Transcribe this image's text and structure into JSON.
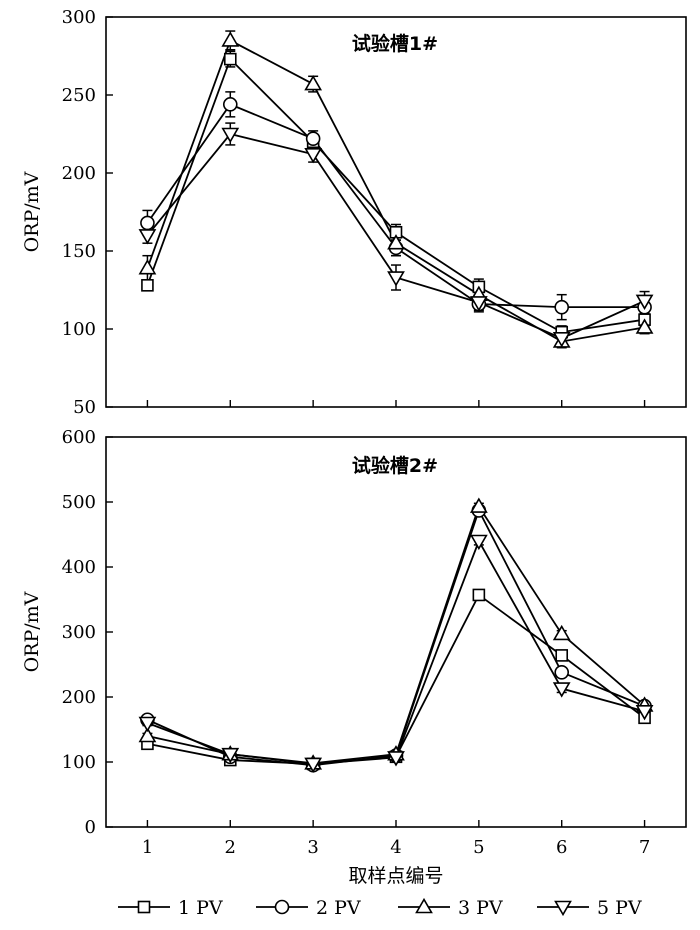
{
  "chart_data": [
    {
      "type": "line",
      "title": "试验槽1#",
      "xlabel": "",
      "ylabel": "ORP/mV",
      "x": [
        1,
        2,
        3,
        4,
        5,
        6,
        7
      ],
      "xticks": [
        "1",
        "2",
        "3",
        "4",
        "5",
        "6",
        "7"
      ],
      "xlim": [
        0.5,
        7.5
      ],
      "ylim": [
        50,
        300
      ],
      "yticks": [
        50,
        100,
        150,
        200,
        250,
        300
      ],
      "series": [
        {
          "name": "1 PV",
          "marker": "square",
          "values": [
            128,
            273,
            220,
            162,
            127,
            98,
            106
          ],
          "errors": [
            3,
            5,
            4,
            5,
            5,
            4,
            4
          ]
        },
        {
          "name": "2 PV",
          "marker": "circle",
          "values": [
            168,
            244,
            222,
            152,
            116,
            114,
            114
          ],
          "errors": [
            8,
            8,
            5,
            5,
            5,
            8,
            5
          ]
        },
        {
          "name": "3 PV",
          "marker": "triangle-up",
          "values": [
            139,
            285,
            257,
            155,
            122,
            92,
            101
          ],
          "errors": [
            8,
            6,
            5,
            8,
            6,
            4,
            4
          ]
        },
        {
          "name": "5 PV",
          "marker": "triangle-down",
          "values": [
            160,
            225,
            212,
            133,
            117,
            94,
            118
          ],
          "errors": [
            5,
            7,
            5,
            8,
            5,
            4,
            6
          ]
        }
      ]
    },
    {
      "type": "line",
      "title": "试验槽2#",
      "xlabel": "取样点编号",
      "ylabel": "ORP/mV",
      "x": [
        1,
        2,
        3,
        4,
        5,
        6,
        7
      ],
      "xticks": [
        "1",
        "2",
        "3",
        "4",
        "5",
        "6",
        "7"
      ],
      "xlim": [
        0.5,
        7.5
      ],
      "ylim": [
        0,
        600
      ],
      "yticks": [
        0,
        100,
        200,
        300,
        400,
        500,
        600
      ],
      "series": [
        {
          "name": "1 PV",
          "marker": "square",
          "values": [
            128,
            103,
            97,
            108,
            357,
            264,
            168
          ],
          "errors": [
            4,
            4,
            6,
            4,
            4,
            5,
            4
          ]
        },
        {
          "name": "2 PV",
          "marker": "circle",
          "values": [
            165,
            108,
            95,
            110,
            487,
            238,
            186
          ],
          "errors": [
            5,
            4,
            6,
            4,
            6,
            6,
            4
          ]
        },
        {
          "name": "3 PV",
          "marker": "triangle-up",
          "values": [
            140,
            112,
            98,
            112,
            493,
            297,
            187
          ],
          "errors": [
            4,
            4,
            6,
            4,
            5,
            5,
            4
          ]
        },
        {
          "name": "5 PV",
          "marker": "triangle-down",
          "values": [
            160,
            112,
            97,
            107,
            440,
            213,
            178
          ],
          "errors": [
            4,
            4,
            6,
            4,
            6,
            6,
            4
          ]
        }
      ]
    }
  ],
  "legend": {
    "placement": "bottom",
    "items": [
      {
        "label": "1 PV",
        "marker": "square"
      },
      {
        "label": "2 PV",
        "marker": "circle"
      },
      {
        "label": "3 PV",
        "marker": "triangle-up"
      },
      {
        "label": "5 PV",
        "marker": "triangle-down"
      }
    ]
  },
  "colors": {
    "line": "#000000",
    "marker_fill": "#ffffff",
    "background": "#ffffff"
  }
}
